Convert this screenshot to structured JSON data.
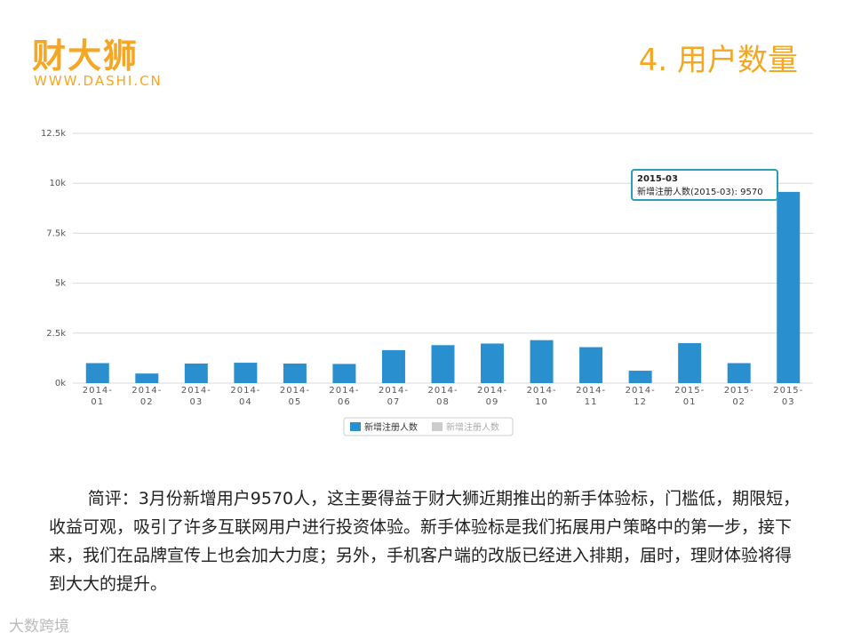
{
  "header": {
    "logo": "财大狮",
    "url": "WWW.DASHI.CN",
    "title": "4. 用户数量"
  },
  "chart_data": {
    "type": "bar",
    "categories": [
      "2014-01",
      "2014-02",
      "2014-03",
      "2014-04",
      "2014-05",
      "2014-06",
      "2014-07",
      "2014-08",
      "2014-09",
      "2014-10",
      "2014-11",
      "2014-12",
      "2015-01",
      "2015-02",
      "2015-03"
    ],
    "series": [
      {
        "name": "新增注册人数",
        "color": "#2a8fcf",
        "values": [
          1000,
          480,
          980,
          1020,
          980,
          960,
          1650,
          1900,
          1980,
          2150,
          1800,
          620,
          2000,
          1000,
          9570
        ]
      }
    ],
    "hidden_series": [
      {
        "name": "新增注册人数",
        "color": "#cccccc"
      }
    ],
    "ylim": [
      0,
      12500
    ],
    "yticks": [
      {
        "value": 0,
        "label": "0k"
      },
      {
        "value": 2500,
        "label": "2.5k"
      },
      {
        "value": 5000,
        "label": "5k"
      },
      {
        "value": 7500,
        "label": "7.5k"
      },
      {
        "value": 10000,
        "label": "10k"
      },
      {
        "value": 12500,
        "label": "12.5k"
      }
    ],
    "grid": true,
    "tooltip": {
      "title": "2015-03",
      "text": "新增注册人数(2015-03): 9570"
    }
  },
  "comment": "简评：3月份新增用户9570人，这主要得益于财大狮近期推出的新手体验标，门槛低，期限短，收益可观，吸引了许多互联网用户进行投资体验。新手体验标是我们拓展用户策略中的第一步，接下来，我们在品牌宣传上也会加大力度；另外，手机客户端的改版已经进入排期，届时，理财体验将得到大大的提升。",
  "watermark": "大数跨境"
}
